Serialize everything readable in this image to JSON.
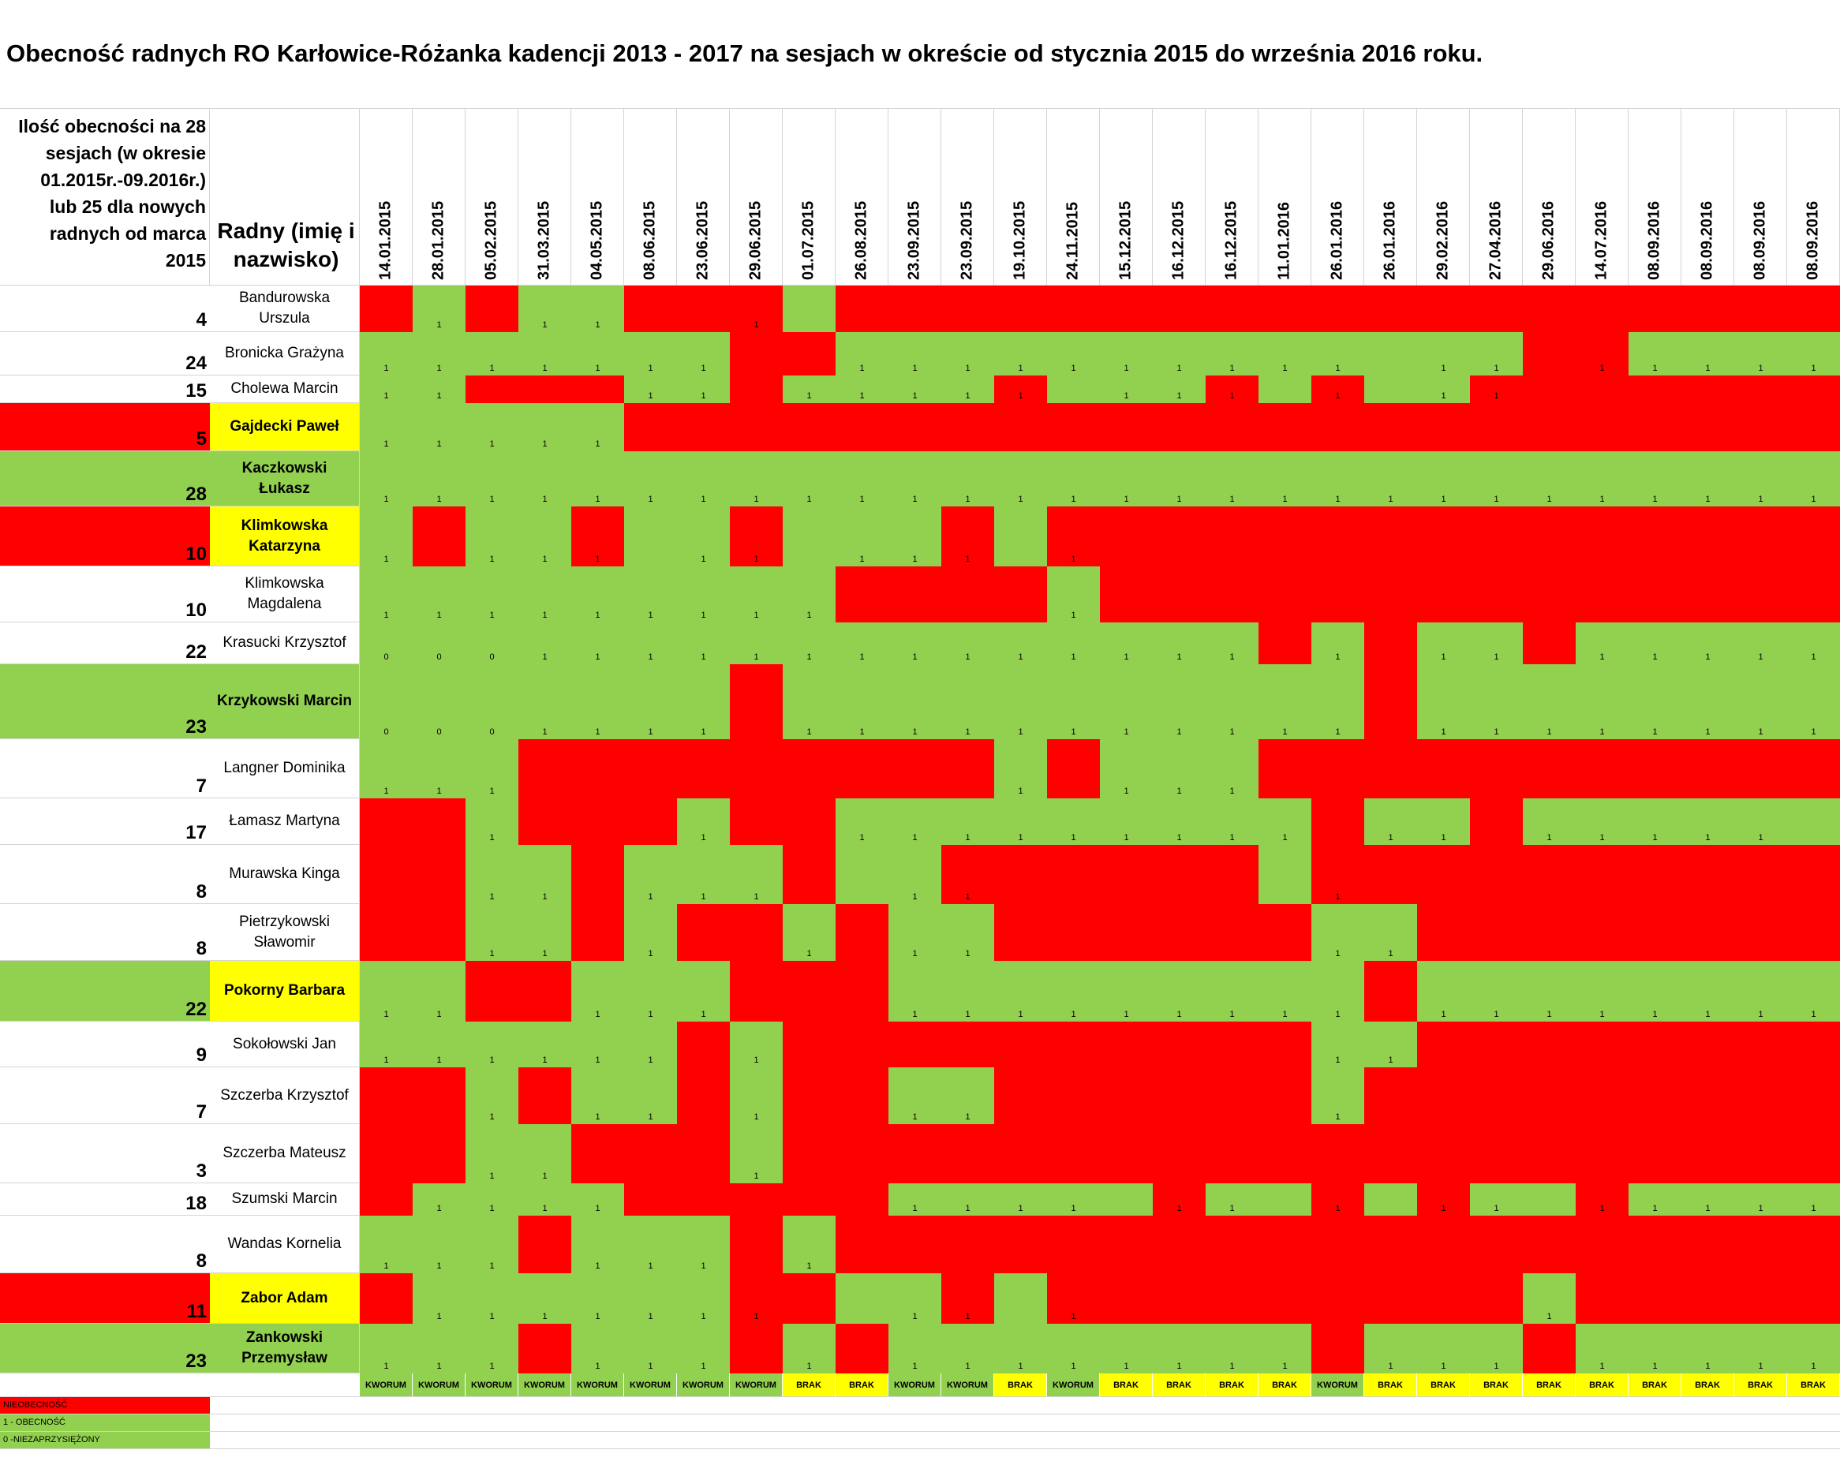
{
  "title": "Obecność radnych RO Karłowice-Różanka kadencji 2013 - 2017 na sesjach w okreście od stycznia 2015 do września 2016 roku.",
  "header_count": "Ilość obecności na 28\nsesjach (w okresie\n01.2015r.-09.2016r.)\nlub 25 dla nowych\nradnych od marca\n2015",
  "header_name": "Radny (imię i nazwisko)",
  "dates": [
    "14.01.2015",
    "28.01.2015",
    "05.02.2015",
    "31.03.2015",
    "04.05.2015",
    "08.06.2015",
    "23.06.2015",
    "29.06.2015",
    "01.07.2015",
    "26.08.2015",
    "23.09.2015",
    "23.09.2015",
    "19.10.2015",
    "24.11.2015",
    "15.12.2015",
    "16.12.2015",
    "16.12.2015",
    "11.01.2016",
    "26.01.2016",
    "26.01.2016",
    "29.02.2016",
    "27.04.2016",
    "29.06.2016",
    "14.07.2016",
    "08.09.2016",
    "08.09.2016",
    "08.09.2016",
    "08.09.2016"
  ],
  "rows": [
    {
      "count": "4",
      "name": "Bandurowska Urszula",
      "style": "plain",
      "countbg": "w",
      "cells": "rgrggrrrgrrrrrrrrrrrrrrrrrrr",
      "marks": [
        null,
        "1",
        null,
        "1",
        "1",
        null,
        null,
        "1"
      ]
    },
    {
      "count": "24",
      "name": "Bronicka Grażyna",
      "style": "plain",
      "countbg": "w",
      "cells": "gggggggrrgggggggggggggrrgggg",
      "marks": [
        "1",
        "1",
        "1",
        "1",
        "1",
        "1",
        "1",
        null,
        null,
        "1",
        "1",
        "1",
        "1",
        "1",
        "1",
        "1",
        "1",
        "1",
        "1",
        null,
        "1",
        "1",
        null,
        "1",
        "1",
        "1",
        "1",
        "1"
      ]
    },
    {
      "count": "15",
      "name": "Cholewa Marcin",
      "style": "plain",
      "countbg": "w",
      "cells": "ggrrrggrggggrgggrgrggrrrrrrr",
      "marks": [
        "1",
        "1",
        null,
        null,
        null,
        "1",
        "1",
        null,
        "1",
        "1",
        "1",
        "1",
        "1",
        null,
        "1",
        "1",
        "1",
        null,
        "1",
        null,
        "1",
        "1"
      ]
    },
    {
      "count": "5",
      "name": "Gajdecki Paweł",
      "style": "bold",
      "countbg": "r",
      "cells": "gggggrrrrrrrrrrrrrrrrrrrrrrr",
      "marks": [
        "1",
        "1",
        "1",
        "1",
        "1"
      ]
    },
    {
      "count": "28",
      "name": "Kaczkowski Łukasz",
      "style": "boldplain",
      "countbg": "g",
      "cells": "gggggggggggggggggggggggggggg",
      "marks": [
        "1",
        "1",
        "1",
        "1",
        "1",
        "1",
        "1",
        "1",
        "1",
        "1",
        "1",
        "1",
        "1",
        "1",
        "1",
        "1",
        "1",
        "1",
        "1",
        "1",
        "1",
        "1",
        "1",
        "1",
        "1",
        "1",
        "1",
        "1"
      ]
    },
    {
      "count": "10",
      "name": "Klimkowska Katarzyna",
      "style": "bold",
      "countbg": "r",
      "cells": "grggrggrgggrgrrrrrrrrrrrrrrr",
      "marks": [
        "1",
        null,
        "1",
        "1",
        "1",
        null,
        "1",
        "1",
        null,
        "1",
        "1",
        "1",
        null,
        "1"
      ]
    },
    {
      "count": "10",
      "name": "Klimkowska Magdalena",
      "style": "plain",
      "countbg": "w",
      "cells": "gggggggggrrrrgrrrrrrrrrrrrrr",
      "marks": [
        "1",
        "1",
        "1",
        "1",
        "1",
        "1",
        "1",
        "1",
        "1",
        null,
        null,
        null,
        null,
        "1"
      ]
    },
    {
      "count": "22",
      "name": "Krasucki Krzysztof",
      "style": "plain",
      "countbg": "w",
      "cells": "gggggggggggggggggrgrggrggggg",
      "marks": [
        "0",
        "0",
        "0",
        "1",
        "1",
        "1",
        "1",
        "1",
        "1",
        "1",
        "1",
        "1",
        "1",
        "1",
        "1",
        "1",
        "1",
        null,
        "1",
        null,
        "1",
        "1",
        null,
        "1",
        "1",
        "1",
        "1",
        "1"
      ]
    },
    {
      "count": "23",
      "name": "Krzykowski Marcin",
      "style": "boldplain",
      "countbg": "g",
      "cells": "gggggggrgggggggggggrgggggggg",
      "marks": [
        "0",
        "0",
        "0",
        "1",
        "1",
        "1",
        "1",
        null,
        "1",
        "1",
        "1",
        "1",
        "1",
        "1",
        "1",
        "1",
        "1",
        "1",
        "1",
        null,
        "1",
        "1",
        "1",
        "1",
        "1",
        "1",
        "1",
        "1"
      ]
    },
    {
      "count": "7",
      "name": "Langner Dominika",
      "style": "plain",
      "countbg": "w",
      "cells": "gggrrrrrrrrrgrgggrrrrrrrrrrr",
      "marks": [
        "1",
        "1",
        "1",
        null,
        null,
        null,
        null,
        null,
        null,
        null,
        null,
        null,
        "1",
        null,
        "1",
        "1",
        "1"
      ]
    },
    {
      "count": "17",
      "name": "Łamasz Martyna",
      "style": "plain",
      "countbg": "w",
      "cells": "rrgrrrgrrgggggggggrggrgggggg",
      "marks": [
        null,
        null,
        "1",
        null,
        null,
        null,
        "1",
        null,
        null,
        "1",
        "1",
        "1",
        "1",
        "1",
        "1",
        "1",
        "1",
        "1",
        null,
        "1",
        "1",
        null,
        "1",
        "1",
        "1",
        "1",
        "1"
      ]
    },
    {
      "count": "8",
      "name": "Murawska Kinga",
      "style": "plain",
      "countbg": "w",
      "cells": "rrggrgggrggrrrrrrgrrrrrrrrrr",
      "marks": [
        null,
        null,
        "1",
        "1",
        null,
        "1",
        "1",
        "1",
        null,
        null,
        "1",
        "1",
        null,
        null,
        null,
        null,
        null,
        null,
        "1"
      ]
    },
    {
      "count": "8",
      "name": "Pietrzykowski Sławomir",
      "style": "plain",
      "countbg": "w",
      "cells": "rrggrgrrgrggrrrrrrggrrrrrrrr",
      "marks": [
        null,
        null,
        "1",
        "1",
        null,
        "1",
        null,
        null,
        "1",
        null,
        "1",
        "1",
        null,
        null,
        null,
        null,
        null,
        null,
        "1",
        "1"
      ]
    },
    {
      "count": "22",
      "name": "Pokorny Barbara",
      "style": "bold",
      "countbg": "g",
      "cells": "ggrrgggrrrgggggggggrgggggggg",
      "marks": [
        "1",
        "1",
        null,
        null,
        "1",
        "1",
        "1",
        null,
        null,
        null,
        "1",
        "1",
        "1",
        "1",
        "1",
        "1",
        "1",
        "1",
        "1",
        null,
        "1",
        "1",
        "1",
        "1",
        "1",
        "1",
        "1",
        "1"
      ]
    },
    {
      "count": "9",
      "name": "Sokołowski Jan",
      "style": "plain",
      "countbg": "w",
      "cells": "ggggggrgrrrrrrrrrrggrrrrrrrr",
      "marks": [
        "1",
        "1",
        "1",
        "1",
        "1",
        "1",
        null,
        "1",
        null,
        null,
        null,
        null,
        null,
        null,
        null,
        null,
        null,
        null,
        "1",
        "1"
      ]
    },
    {
      "count": "7",
      "name": "Szczerba Krzysztof",
      "style": "plain",
      "countbg": "w",
      "cells": "rrgrggrgrrggrrrrrrgrrrrrrrrr",
      "marks": [
        null,
        null,
        "1",
        null,
        "1",
        "1",
        null,
        "1",
        null,
        null,
        "1",
        "1",
        null,
        null,
        null,
        null,
        null,
        null,
        "1"
      ]
    },
    {
      "count": "3",
      "name": "Szczerba Mateusz",
      "style": "plain",
      "countbg": "w",
      "cells": "rrggrrrgrrrrrrrrrrrrrrrrrrrr",
      "marks": [
        null,
        null,
        "1",
        "1",
        null,
        null,
        null,
        "1"
      ]
    },
    {
      "count": "18",
      "name": "Szumski Marcin",
      "style": "plain",
      "countbg": "w",
      "cells": "rggggrrrrrgggggrggrgrggrgggg",
      "marks": [
        null,
        "1",
        "1",
        "1",
        "1",
        null,
        null,
        null,
        null,
        null,
        "1",
        "1",
        "1",
        "1",
        null,
        "1",
        "1",
        null,
        "1",
        null,
        "1",
        "1",
        null,
        "1",
        "1",
        "1",
        "1",
        "1"
      ]
    },
    {
      "count": "8",
      "name": "Wandas Kornelia",
      "style": "plain",
      "countbg": "w",
      "cells": "gggrgggrgrrrrrrrrrrrrrrrrrrr",
      "marks": [
        "1",
        "1",
        "1",
        null,
        "1",
        "1",
        "1",
        null,
        "1"
      ]
    },
    {
      "count": "11",
      "name": "Zabor Adam",
      "style": "bold",
      "countbg": "r",
      "cells": "rggggggrrggrgrrrrrrrrrgrrrrr",
      "marks": [
        null,
        "1",
        "1",
        "1",
        "1",
        "1",
        "1",
        "1",
        null,
        null,
        "1",
        "1",
        null,
        "1",
        null,
        null,
        null,
        null,
        null,
        null,
        null,
        null,
        "1"
      ]
    },
    {
      "count": "23",
      "name": "Zankowski Przemysław",
      "style": "boldplain",
      "countbg": "g",
      "cells": "gggrgggrgrggggggggrgggrggggg",
      "marks": [
        "1",
        "1",
        "1",
        null,
        "1",
        "1",
        "1",
        null,
        "1",
        null,
        "1",
        "1",
        "1",
        "1",
        "1",
        "1",
        "1",
        "1",
        null,
        "1",
        "1",
        "1",
        null,
        "1",
        "1",
        "1",
        "1",
        "1"
      ]
    }
  ],
  "status": [
    "KWORUM",
    "KWORUM",
    "KWORUM",
    "KWORUM",
    "KWORUM",
    "KWORUM",
    "KWORUM",
    "KWORUM",
    "BRAK",
    "BRAK",
    "KWORUM",
    "KWORUM",
    "BRAK",
    "KWORUM",
    "BRAK",
    "BRAK",
    "BRAK",
    "BRAK",
    "KWORUM",
    "BRAK",
    "BRAK",
    "BRAK",
    "BRAK",
    "BRAK",
    "BRAK",
    "BRAK",
    "BRAK",
    "BRAK"
  ],
  "legend": {
    "absent": "NIEOBECNOŚĆ",
    "present": "1 - OBECNOŚĆ",
    "not_sworn": "0 -NIEZAPRZYSIĘŻONY"
  },
  "colors": {
    "present": "#92d050",
    "absent": "#ff0000",
    "highlight": "#ffff00"
  }
}
